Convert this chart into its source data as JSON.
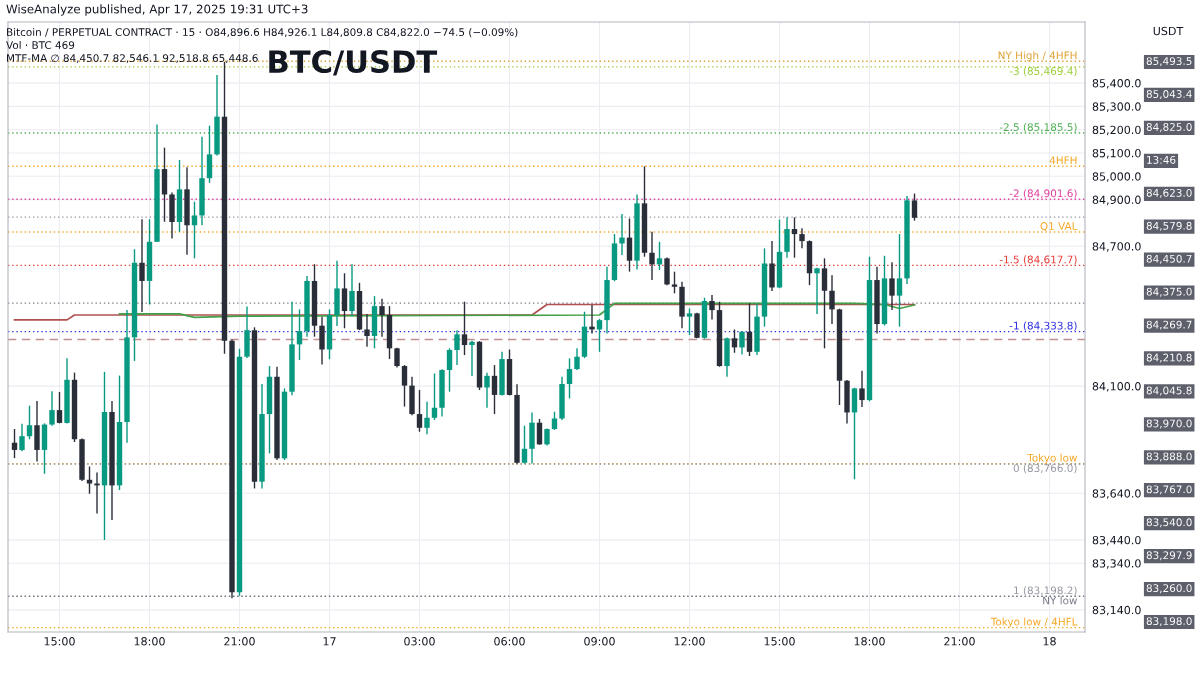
{
  "chart_data": {
    "type": "candlestick",
    "title": "BTC/USDT",
    "ylabel": "USDT",
    "annotations": [
      "WiseAnalyze published, Apr 17, 2025 19:31 UTC+3",
      "Bitcoin / PERPETUAL CONTRACT · 15 · O84,896.6 H84,926.1 L84,809.8 C84,822.0 −74.5 (−0.09%)",
      "Vol · BTC 469",
      "MTF-MA ∅ 84,450.7 82,546.1 92,518.8 65,448.6",
      "85,493.5",
      "85,043.4",
      "84,825.0",
      "13:46",
      "84,623.0",
      "84,579.8",
      "84,450.7",
      "84,375.0",
      "84,269.7",
      "84,210.8",
      "84,045.8",
      "83,970.0",
      "83,888.0",
      "83,767.0",
      "83,540.0",
      "83,297.9",
      "83,260.0",
      "83,198.0"
    ],
    "colors": [
      "#2a2e39",
      "#089981",
      "#089981",
      "#2a2e39",
      "#089981",
      "#089981",
      "#2a2e39",
      "#089981",
      "#2a2e39",
      "#2a2e39",
      "#2a2e39",
      "#2a2e39",
      "#089981",
      "#2a2e39",
      "#089981",
      "#089981",
      "#089981",
      "#2a2e39",
      "#089981",
      "#089981",
      "#2a2e39",
      "#2a2e39",
      "#089981",
      "#2a2e39",
      "#089981",
      "#089981",
      "#089981",
      "#089981",
      "#2a2e39",
      "#2a2e39",
      "#089981",
      "#089981",
      "#2a2e39",
      "#089981",
      "#089981",
      "#2a2e39",
      "#089981",
      "#089981",
      "#089981",
      "#089981",
      "#2a2e39",
      "#2a2e39",
      "#089981",
      "#089981",
      "#2a2e39",
      "#089981",
      "#2a2e39",
      "#2a2e39",
      "#089981",
      "#2a2e39",
      "#2a2e39",
      "#2a2e39",
      "#2a2e39",
      "#2a2e39",
      "#2a2e39",
      "#089981",
      "#089981",
      "#089981",
      "#089981",
      "#089981",
      "#2a2e39",
      "#089981",
      "#2a2e39",
      "#089981",
      "#2a2e39",
      "#089981",
      "#2a2e39",
      "#2a2e39",
      "#089981",
      "#089981",
      "#2a2e39",
      "#089981",
      "#089981",
      "#089981",
      "#089981",
      "#089981",
      "#089981",
      "#2a2e39",
      "#089981",
      "#089981",
      "#089981",
      "#089981",
      "#2a2e39",
      "#089981",
      "#2a2e39",
      "#2a2e39",
      "#089981",
      "#2a2e39",
      "#2a2e39",
      "#2a2e39",
      "#089981",
      "#2a2e39",
      "#089981",
      "#2a2e39",
      "#2a2e39",
      "#089981",
      "#2a2e39",
      "#089981",
      "#2a2e39",
      "#089981",
      "#089981",
      "#2a2e39",
      "#089981",
      "#089981",
      "#2a2e39",
      "#2a2e39",
      "#2a2e39",
      "#089981",
      "#2a2e39",
      "#2a2e39",
      "#2a2e39",
      "#2a2e39",
      "#089981",
      "#2a2e39",
      "#089981",
      "#2a2e39",
      "#089981",
      "#2a2e39",
      "#089981",
      "#089981",
      "#2a2e39"
    ],
    "x": [
      "2025-04-16T13:30",
      "2025-04-16T13:45",
      "2025-04-16T14:00",
      "2025-04-16T14:15",
      "2025-04-16T14:30",
      "2025-04-16T14:45",
      "2025-04-16T15:00",
      "2025-04-16T15:15",
      "2025-04-16T15:30",
      "2025-04-16T15:45",
      "2025-04-16T16:00",
      "2025-04-16T16:15",
      "2025-04-16T16:30",
      "2025-04-16T16:45",
      "2025-04-16T17:00",
      "2025-04-16T17:15",
      "2025-04-16T17:30",
      "2025-04-16T17:45",
      "2025-04-16T18:00",
      "2025-04-16T18:15",
      "2025-04-16T18:30",
      "2025-04-16T18:45",
      "2025-04-16T19:00",
      "2025-04-16T19:15",
      "2025-04-16T19:30",
      "2025-04-16T19:45",
      "2025-04-16T20:00",
      "2025-04-16T20:15",
      "2025-04-16T20:30",
      "2025-04-16T20:45",
      "2025-04-16T21:00",
      "2025-04-16T21:15",
      "2025-04-16T21:30",
      "2025-04-16T21:45",
      "2025-04-16T22:00",
      "2025-04-16T22:15",
      "2025-04-16T22:30",
      "2025-04-16T22:45",
      "2025-04-16T23:00",
      "2025-04-16T23:15",
      "2025-04-16T23:30",
      "2025-04-16T23:45",
      "2025-04-17T00:00",
      "2025-04-17T00:15",
      "2025-04-17T00:30",
      "2025-04-17T00:45",
      "2025-04-17T01:00",
      "2025-04-17T01:15",
      "2025-04-17T01:30",
      "2025-04-17T01:45",
      "2025-04-17T02:00",
      "2025-04-17T02:15",
      "2025-04-17T02:30",
      "2025-04-17T02:45",
      "2025-04-17T03:00",
      "2025-04-17T03:15",
      "2025-04-17T03:30",
      "2025-04-17T03:45",
      "2025-04-17T04:00",
      "2025-04-17T04:15",
      "2025-04-17T04:30",
      "2025-04-17T04:45",
      "2025-04-17T05:00",
      "2025-04-17T05:15",
      "2025-04-17T05:30",
      "2025-04-17T05:45",
      "2025-04-17T06:00",
      "2025-04-17T06:15",
      "2025-04-17T06:30",
      "2025-04-17T06:45",
      "2025-04-17T07:00",
      "2025-04-17T07:15",
      "2025-04-17T07:30",
      "2025-04-17T07:45",
      "2025-04-17T08:00",
      "2025-04-17T08:15",
      "2025-04-17T08:30",
      "2025-04-17T08:45",
      "2025-04-17T09:00",
      "2025-04-17T09:15",
      "2025-04-17T09:30",
      "2025-04-17T09:45",
      "2025-04-17T10:00",
      "2025-04-17T10:15",
      "2025-04-17T10:30",
      "2025-04-17T10:45",
      "2025-04-17T11:00",
      "2025-04-17T11:15",
      "2025-04-17T11:30",
      "2025-04-17T11:45",
      "2025-04-17T12:00",
      "2025-04-17T12:15",
      "2025-04-17T12:30",
      "2025-04-17T12:45",
      "2025-04-17T13:00",
      "2025-04-17T13:15",
      "2025-04-17T13:30",
      "2025-04-17T13:45",
      "2025-04-17T14:00",
      "2025-04-17T14:15",
      "2025-04-17T14:30",
      "2025-04-17T14:45",
      "2025-04-17T15:00",
      "2025-04-17T15:15",
      "2025-04-17T15:30",
      "2025-04-17T15:45",
      "2025-04-17T16:00",
      "2025-04-17T16:15",
      "2025-04-17T16:30",
      "2025-04-17T16:45",
      "2025-04-17T17:00",
      "2025-04-17T17:15",
      "2025-04-17T17:30",
      "2025-04-17T17:45",
      "2025-04-17T18:00",
      "2025-04-17T18:15",
      "2025-04-17T18:30",
      "2025-04-17T18:45",
      "2025-04-17T19:00",
      "2025-04-17T19:15",
      "2025-04-17T19:30"
    ],
    "ohlc": [
      [
        83857,
        83916,
        83791,
        83826
      ],
      [
        83826,
        83938,
        83820,
        83885
      ],
      [
        83885,
        84016,
        83872,
        83932
      ],
      [
        83932,
        84036,
        83776,
        83826
      ],
      [
        83826,
        83940,
        83724,
        83935
      ],
      [
        83935,
        84078,
        83930,
        83997
      ],
      [
        83997,
        84075,
        83940,
        83942
      ],
      [
        83942,
        84219,
        83940,
        84127
      ],
      [
        84127,
        84158,
        83860,
        83872
      ],
      [
        83872,
        83875,
        83693,
        83698
      ],
      [
        83698,
        83755,
        83638,
        83682
      ],
      [
        83682,
        83729,
        83553,
        83674
      ],
      [
        83674,
        84161,
        83440,
        83989
      ],
      [
        83989,
        84036,
        83526,
        83674
      ],
      [
        83674,
        84145,
        83654,
        83946
      ],
      [
        83946,
        84426,
        83857,
        84309
      ],
      [
        84309,
        84687,
        84208,
        84629
      ],
      [
        84629,
        84816,
        84418,
        84551
      ],
      [
        84551,
        84816,
        84450,
        84719
      ],
      [
        84719,
        85222,
        84719,
        85031
      ],
      [
        85031,
        85123,
        84805,
        84922
      ],
      [
        84922,
        84930,
        84733,
        84804
      ],
      [
        84804,
        85070,
        84762,
        84944
      ],
      [
        84944,
        85039,
        84663,
        84790
      ],
      [
        84790,
        84891,
        84648,
        84832
      ],
      [
        84832,
        85170,
        84790,
        84992
      ],
      [
        84992,
        85217,
        84972,
        85094
      ],
      [
        85094,
        85435,
        85089,
        85256
      ],
      [
        85256,
        85490,
        84239,
        84294
      ],
      [
        84294,
        84300,
        83190,
        83215
      ],
      [
        83215,
        84260,
        83200,
        84226
      ],
      [
        84226,
        84441,
        84220,
        84340
      ],
      [
        84340,
        84352,
        83661,
        83690
      ],
      [
        83690,
        84109,
        83661,
        83980
      ],
      [
        83980,
        84186,
        83811,
        84140
      ],
      [
        84140,
        84183,
        83783,
        83790
      ],
      [
        83790,
        84090,
        83783,
        84076
      ],
      [
        84076,
        84462,
        84061,
        84279
      ],
      [
        84279,
        84429,
        84212,
        84336
      ],
      [
        84336,
        84572,
        84312,
        84551
      ],
      [
        84551,
        84623,
        84312,
        84359
      ],
      [
        84359,
        84398,
        84193,
        84257
      ],
      [
        84257,
        84429,
        84215,
        84405
      ],
      [
        84405,
        84638,
        84358,
        84519
      ],
      [
        84519,
        84584,
        84348,
        84422
      ],
      [
        84422,
        84623,
        84400,
        84508
      ],
      [
        84508,
        84543,
        84340,
        84343
      ],
      [
        84343,
        84409,
        84269,
        84315
      ],
      [
        84315,
        84486,
        84262,
        84443
      ],
      [
        84443,
        84475,
        84312,
        84405
      ],
      [
        84405,
        84443,
        84216,
        84262
      ],
      [
        84262,
        84265,
        84180,
        84186
      ],
      [
        84186,
        84190,
        84012,
        84102
      ],
      [
        84102,
        84140,
        83975,
        83980
      ],
      [
        83980,
        84083,
        83904,
        83921
      ],
      [
        83921,
        84033,
        83893,
        83964
      ],
      [
        83964,
        84154,
        83955,
        84007
      ],
      [
        84007,
        84172,
        83970,
        84169
      ],
      [
        84169,
        84262,
        84076,
        84255
      ],
      [
        84255,
        84340,
        84190,
        84322
      ],
      [
        84322,
        84462,
        84233,
        84276
      ],
      [
        84276,
        84295,
        84143,
        84290
      ],
      [
        84290,
        84293,
        84083,
        84094
      ],
      [
        84094,
        84157,
        84007,
        84144
      ],
      [
        84144,
        84190,
        83980,
        84062
      ],
      [
        84062,
        84247,
        84060,
        84216
      ],
      [
        84216,
        84257,
        84060,
        84062
      ],
      [
        84062,
        84108,
        83767,
        83771
      ],
      [
        83771,
        83930,
        83767,
        83831
      ],
      [
        83831,
        83987,
        83768,
        83943
      ],
      [
        83943,
        83959,
        83848,
        83850
      ],
      [
        83850,
        83918,
        83845,
        83916
      ],
      [
        83916,
        83990,
        83912,
        83961
      ],
      [
        83961,
        84140,
        83954,
        84109
      ],
      [
        84109,
        84219,
        84047,
        84173
      ],
      [
        84173,
        84262,
        84169,
        84226
      ],
      [
        84226,
        84419,
        84220,
        84355
      ],
      [
        84355,
        84448,
        84326,
        84343
      ],
      [
        84343,
        84388,
        84247,
        84383
      ],
      [
        84383,
        84612,
        84326,
        84555
      ],
      [
        84555,
        84752,
        84550,
        84712
      ],
      [
        84712,
        84838,
        84662,
        84737
      ],
      [
        84737,
        84819,
        84591,
        84638
      ],
      [
        84638,
        84922,
        84600,
        84884
      ],
      [
        84884,
        85043,
        84655,
        84672
      ],
      [
        84672,
        84762,
        84555,
        84622
      ],
      [
        84622,
        84719,
        84598,
        84648
      ],
      [
        84648,
        84652,
        84533,
        84536
      ],
      [
        84536,
        84591,
        84498,
        84526
      ],
      [
        84526,
        84548,
        84348,
        84398
      ],
      [
        84398,
        84433,
        84319,
        84412
      ],
      [
        84412,
        84415,
        84305,
        84307
      ],
      [
        84307,
        84479,
        84303,
        84465
      ],
      [
        84465,
        84491,
        84386,
        84426
      ],
      [
        84426,
        84462,
        84183,
        84186
      ],
      [
        84186,
        84308,
        84140,
        84305
      ],
      [
        84305,
        84343,
        84243,
        84266
      ],
      [
        84266,
        84336,
        84236,
        84333
      ],
      [
        84333,
        84455,
        84229,
        84247
      ],
      [
        84247,
        84455,
        84233,
        84398
      ],
      [
        84398,
        84691,
        84355,
        84626
      ],
      [
        84626,
        84722,
        84508,
        84523
      ],
      [
        84523,
        84815,
        84520,
        84676
      ],
      [
        84676,
        84824,
        84651,
        84774
      ],
      [
        84774,
        84824,
        84651,
        84752
      ],
      [
        84752,
        84777,
        84691,
        84722
      ],
      [
        84722,
        84725,
        84533,
        84584
      ],
      [
        84584,
        84608,
        84409,
        84605
      ],
      [
        84605,
        84648,
        84262,
        84509
      ],
      [
        84509,
        84576,
        84366,
        84429
      ],
      [
        84429,
        84432,
        84019,
        84123
      ],
      [
        84123,
        84126,
        83940,
        83987
      ],
      [
        83987,
        84093,
        83700,
        84090
      ],
      [
        84090,
        84166,
        84010,
        84040
      ],
      [
        84040,
        84655,
        84035,
        84555
      ],
      [
        84555,
        84612,
        84326,
        84366
      ],
      [
        84366,
        84659,
        84360,
        84562
      ],
      [
        84562,
        84631,
        84426,
        84488
      ],
      [
        84488,
        84752,
        84355,
        84562
      ],
      [
        84562,
        84915,
        84538,
        84897
      ],
      [
        84896.6,
        84926.1,
        84809.8,
        84822.0
      ]
    ],
    "series": [
      {
        "type": "line",
        "color": "#b05050",
        "x": [
          "2025-04-16T13:30",
          "2025-04-16T15:15",
          "2025-04-16T15:30",
          "2025-04-17T06:45",
          "2025-04-17T07:15",
          "2025-04-17T19:30"
        ],
        "values": [
          84384,
          84384,
          84405,
          84405,
          84450,
          84450
        ]
      },
      {
        "type": "line",
        "color": "#43a047",
        "x": [
          "2025-04-16T17:00",
          "2025-04-16T19:00",
          "2025-04-16T19:30",
          "2025-04-16T21:00",
          "2025-04-17T09:00",
          "2025-04-17T09:30",
          "2025-04-17T17:30",
          "2025-04-17T18:30",
          "2025-04-17T19:00",
          "2025-04-17T19:30"
        ],
        "values": [
          84410,
          84410,
          84395,
          84400,
          84405,
          84455,
          84455,
          84450,
          84433,
          84448
        ]
      }
    ],
    "ref_lines": [
      {
        "axis": "y",
        "value": 85493.5,
        "label": "NY High / 4HFH",
        "color": "#e0a030",
        "line_style": "dotted"
      },
      {
        "axis": "y",
        "value": 85469.4,
        "label": "-3 (85,469.4)",
        "color": "#9acd32",
        "line_style": "dotted"
      },
      {
        "axis": "y",
        "value": 85185.5,
        "label": "-2.5 (85,185.5)",
        "color": "#4caf50",
        "line_style": "dotted"
      },
      {
        "axis": "y",
        "value": 85043.4,
        "label": "4HFH",
        "color": "#f5a623",
        "line_style": "dotted"
      },
      {
        "axis": "y",
        "value": 84901.6,
        "label": "-2 (84,901.6)",
        "color": "#e040a0",
        "line_style": "dotted"
      },
      {
        "axis": "y",
        "value": 84825.0,
        "label": null,
        "color": "#9598a1",
        "line_style": "dotted"
      },
      {
        "axis": "y",
        "value": 84761,
        "label": "Q1 VAL",
        "color": "#f5a623",
        "line_style": "dotted"
      },
      {
        "axis": "y",
        "value": 84617.7,
        "label": "-1.5 (84,617.7)",
        "color": "#e53935",
        "line_style": "dotted"
      },
      {
        "axis": "y",
        "value": 84456,
        "label": null,
        "color": "#787b86",
        "line_style": "dotted"
      },
      {
        "axis": "y",
        "value": 84333.8,
        "label": "-1 (84,333.8)",
        "color": "#3030e0",
        "line_style": "dotted"
      },
      {
        "axis": "y",
        "value": 84299.6,
        "label": null,
        "color": "#c09090",
        "line_style": "dashed"
      },
      {
        "axis": "y",
        "value": 83767.0,
        "label": "Tokyo low",
        "color": "#f5a623",
        "line_style": "dotted"
      },
      {
        "axis": "y",
        "value": 83766.0,
        "label": "0 (83,766.0)",
        "color": "#9598a1",
        "line_style": "dotted"
      },
      {
        "axis": "y",
        "value": 83198.2,
        "label": "1 (83,198.2)",
        "color": "#9598a1",
        "line_style": "dotted"
      },
      {
        "axis": "y",
        "value": 83198.0,
        "label": "NY low",
        "color": "#787b86",
        "line_style": "dotted"
      },
      {
        "axis": "y",
        "value": 83063.9,
        "label": "Tokyo low / 4HFL",
        "color": "#f5a623",
        "line_style": "dotted"
      }
    ],
    "xlim": [
      "2025-04-16T13:17",
      "2025-04-18T01:11"
    ],
    "xticks": [
      {
        "value": "2025-04-16T15:00",
        "label": "15:00"
      },
      {
        "value": "2025-04-16T18:00",
        "label": "18:00"
      },
      {
        "value": "2025-04-16T21:00",
        "label": "21:00"
      },
      {
        "value": "2025-04-17T00:00",
        "label": "17"
      },
      {
        "value": "2025-04-17T03:00",
        "label": "03:00"
      },
      {
        "value": "2025-04-17T06:00",
        "label": "06:00"
      },
      {
        "value": "2025-04-17T09:00",
        "label": "09:00"
      },
      {
        "value": "2025-04-17T12:00",
        "label": "12:00"
      },
      {
        "value": "2025-04-17T15:00",
        "label": "15:00"
      },
      {
        "value": "2025-04-17T18:00",
        "label": "18:00"
      },
      {
        "value": "2025-04-17T21:00",
        "label": "21:00"
      },
      {
        "value": "2025-04-18T00:00",
        "label": "18"
      }
    ],
    "ylim": [
      83045,
      85662
    ],
    "yticks": [
      {
        "value": 83140,
        "label": "83,140.0"
      },
      {
        "value": 83340,
        "label": "83,340.0"
      },
      {
        "value": 83440,
        "label": "83,440.0"
      },
      {
        "value": 83640,
        "label": "83,640.0"
      },
      {
        "value": 84100,
        "label": "84,100.0"
      },
      {
        "value": 84700,
        "label": "84,700.0"
      },
      {
        "value": 84900,
        "label": "84,900.0"
      },
      {
        "value": 85000,
        "label": "85,000.0"
      },
      {
        "value": 85100,
        "label": "85,100.0"
      },
      {
        "value": 85200,
        "label": "85,200.0"
      },
      {
        "value": 85300,
        "label": "85,300.0"
      },
      {
        "value": 85400,
        "label": "85,400.0"
      }
    ],
    "grid": true
  }
}
